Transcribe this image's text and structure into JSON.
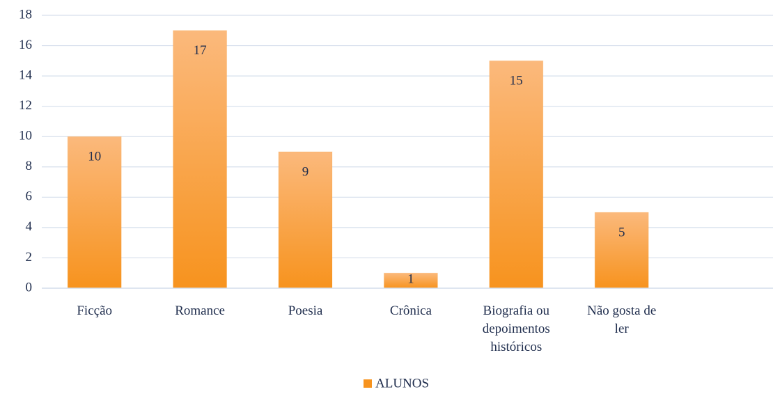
{
  "chart_data": {
    "type": "bar",
    "categories": [
      "Ficção",
      "Romance",
      "Poesia",
      "Crônica",
      "Biografia ou depoimentos históricos",
      "Não gosta de ler",
      null
    ],
    "series": [
      {
        "name": "ALUNOS",
        "color": "#f7931e",
        "values": [
          10,
          17,
          9,
          1,
          15,
          5,
          null
        ]
      }
    ],
    "ylim": [
      0,
      18
    ],
    "yticks": [
      0,
      2,
      4,
      6,
      8,
      10,
      12,
      14,
      16,
      18
    ],
    "grid": true,
    "legend": "bottom"
  }
}
